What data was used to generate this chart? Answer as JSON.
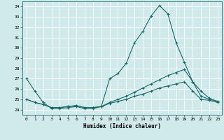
{
  "xlabel": "Humidex (Indice chaleur)",
  "ylabel": "",
  "bg_color": "#d0eaec",
  "line_color": "#1a6b6b",
  "grid_color": "#ffffff",
  "xmin": -0.5,
  "xmax": 23.5,
  "ymin": 23.5,
  "ymax": 34.5,
  "yticks": [
    24,
    25,
    26,
    27,
    28,
    29,
    30,
    31,
    32,
    33,
    34
  ],
  "xticks": [
    0,
    1,
    2,
    3,
    4,
    5,
    6,
    7,
    8,
    9,
    10,
    11,
    12,
    13,
    14,
    15,
    16,
    17,
    18,
    19,
    20,
    21,
    22,
    23
  ],
  "line1_x": [
    0,
    1,
    2,
    3,
    4,
    5,
    6,
    7,
    8,
    9,
    10,
    11,
    12,
    13,
    14,
    15,
    16,
    17,
    18,
    19,
    20,
    21,
    22,
    23
  ],
  "line1_y": [
    27.0,
    25.8,
    24.7,
    24.1,
    24.1,
    24.2,
    24.3,
    24.1,
    24.1,
    24.3,
    27.0,
    27.5,
    28.5,
    30.5,
    31.6,
    33.1,
    34.1,
    33.3,
    30.5,
    28.6,
    26.7,
    25.8,
    25.1,
    24.8
  ],
  "line2_x": [
    0,
    1,
    2,
    3,
    4,
    5,
    6,
    7,
    8,
    9,
    10,
    11,
    12,
    13,
    14,
    15,
    16,
    17,
    18,
    19,
    20,
    21,
    22,
    23
  ],
  "line2_y": [
    25.0,
    24.7,
    24.5,
    24.2,
    24.2,
    24.3,
    24.4,
    24.2,
    24.2,
    24.3,
    24.7,
    25.0,
    25.3,
    25.7,
    26.1,
    26.5,
    26.9,
    27.3,
    27.6,
    27.9,
    26.7,
    25.3,
    25.0,
    24.8
  ],
  "line3_x": [
    0,
    1,
    2,
    3,
    4,
    5,
    6,
    7,
    8,
    9,
    10,
    11,
    12,
    13,
    14,
    15,
    16,
    17,
    18,
    19,
    20,
    21,
    22,
    23
  ],
  "line3_y": [
    25.0,
    24.7,
    24.5,
    24.2,
    24.2,
    24.3,
    24.4,
    24.2,
    24.2,
    24.3,
    24.6,
    24.8,
    25.0,
    25.3,
    25.5,
    25.8,
    26.1,
    26.3,
    26.5,
    26.7,
    25.8,
    25.0,
    24.9,
    24.7
  ]
}
